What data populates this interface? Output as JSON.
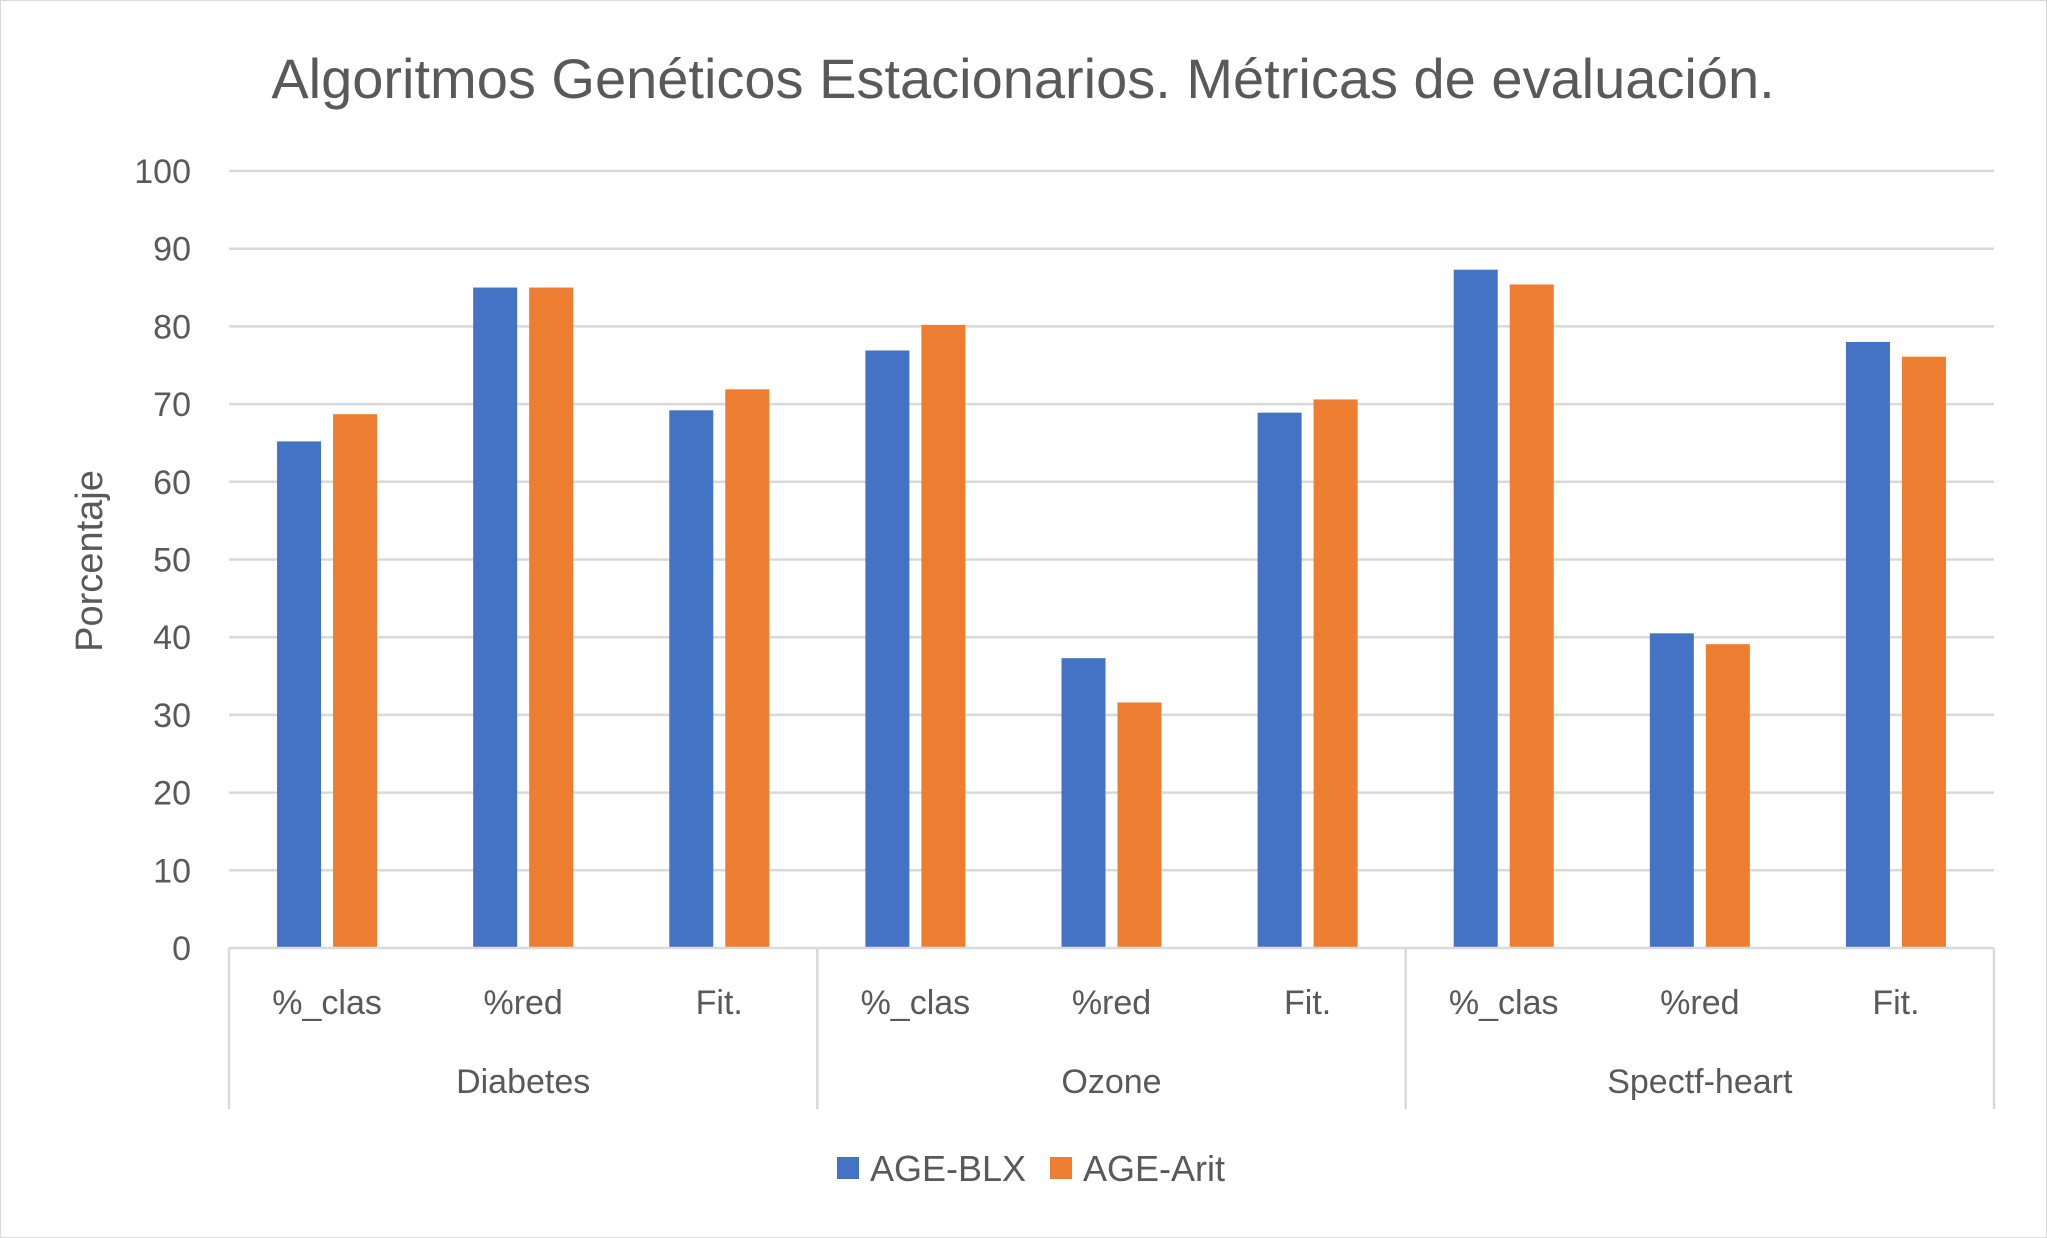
{
  "chart_data": {
    "type": "bar",
    "title": "Algoritmos Genéticos Estacionarios. Métricas de evaluación.",
    "xlabel": "",
    "ylabel": "Porcentaje",
    "ylim": [
      0,
      100
    ],
    "yticks": [
      "0",
      "10",
      "20",
      "30",
      "40",
      "50",
      "60",
      "70",
      "80",
      "90",
      "100"
    ],
    "grid": true,
    "legend_position": "bottom",
    "groups": [
      {
        "label": "Diabetes",
        "categories": [
          "%_clas",
          "%red",
          "Fit."
        ]
      },
      {
        "label": "Ozone",
        "categories": [
          "%_clas",
          "%red",
          "Fit."
        ]
      },
      {
        "label": "Spectf-heart",
        "categories": [
          "%_clas",
          "%red",
          "Fit."
        ]
      }
    ],
    "categories": [
      "%_clas",
      "%red",
      "Fit.",
      "%_clas",
      "%red",
      "Fit.",
      "%_clas",
      "%red",
      "Fit."
    ],
    "series": [
      {
        "name": "AGE-BLX",
        "color": "#4472c4",
        "values": [
          65.2,
          85.0,
          69.2,
          76.9,
          37.3,
          68.9,
          87.3,
          40.5,
          78.0
        ]
      },
      {
        "name": "AGE-Arit",
        "color": "#ed7d31",
        "values": [
          68.7,
          85.0,
          71.9,
          80.2,
          31.6,
          70.6,
          85.4,
          39.1,
          76.1
        ]
      }
    ]
  }
}
